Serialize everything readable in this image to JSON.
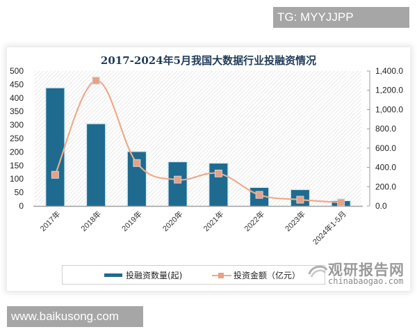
{
  "overlay": {
    "tg_label": "TG: MYYJJPP",
    "site_label": "www.baikusong.com"
  },
  "chart": {
    "title": "2017-2024年5月我国大数据行业投融资情况",
    "left_axis_ticks": [
      "0",
      "50",
      "100",
      "150",
      "200",
      "250",
      "300",
      "350",
      "400",
      "450",
      "500"
    ],
    "right_axis_ticks": [
      "0.0",
      "200.0",
      "400.0",
      "600.0",
      "800.0",
      "1,000.0",
      "1,200.0",
      "1,400.0"
    ],
    "legend": {
      "bar_label": "投融资数量(起)",
      "line_label": "投资金额（亿元）"
    },
    "colors": {
      "bar": "#1f6a8f",
      "bar_edge": "#d6eef8",
      "line": "#f0a98a",
      "marker": "#e8a184",
      "hatch": "#d8d8d8"
    }
  },
  "watermark": {
    "cn": "观研报告网",
    "en": "chinabaogao.com"
  },
  "chart_data": {
    "type": "bar",
    "title": "2017-2024年5月我国大数据行业投融资情况",
    "categories": [
      "2017年",
      "2018年",
      "2019年",
      "2020年",
      "2021年",
      "2022年",
      "2023年",
      "2024年1-5月"
    ],
    "series": [
      {
        "name": "投融资数量(起)",
        "type": "bar",
        "axis": "left",
        "values": [
          436,
          303,
          200,
          162,
          157,
          67,
          59,
          18
        ]
      },
      {
        "name": "投资金额（亿元）",
        "type": "line",
        "axis": "right",
        "values": [
          323,
          1300,
          445,
          273,
          337,
          115,
          65,
          36
        ]
      }
    ],
    "xlabel": "",
    "ylabel": "",
    "ylim": [
      0,
      500
    ],
    "y2lim": [
      0,
      1400
    ],
    "legend_position": "bottom",
    "grid": false
  }
}
